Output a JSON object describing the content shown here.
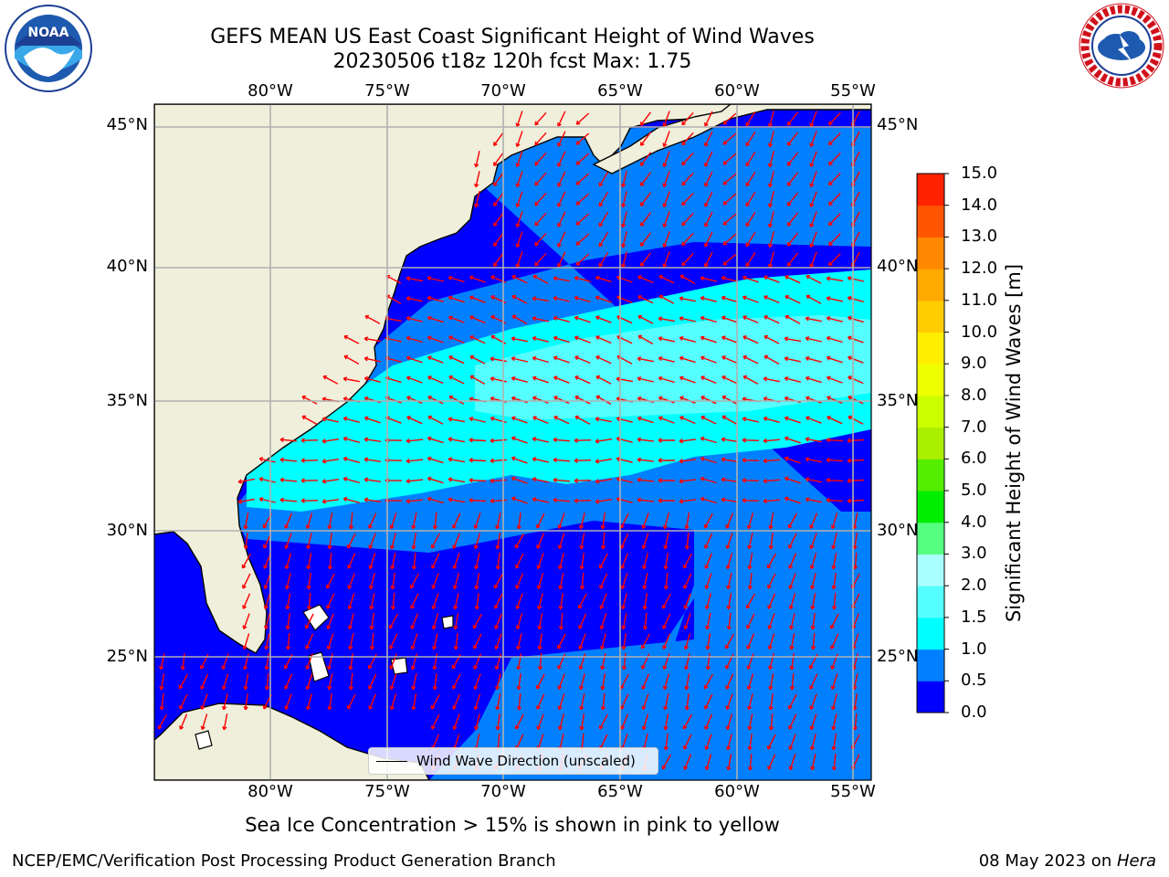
{
  "title": {
    "line1": "GEFS MEAN US East Coast Significant Height of Wind Waves",
    "line2": "20230506 t18z 120h fcst   Max: 1.75"
  },
  "map": {
    "projection": "PlateCarree",
    "lon_range": [
      -85,
      -54
    ],
    "lat_range": [
      20.5,
      46
    ],
    "lon_ticks": [
      "80°W",
      "75°W",
      "70°W",
      "65°W",
      "60°W",
      "55°W"
    ],
    "lat_ticks": [
      "45°N",
      "40°N",
      "35°N",
      "30°N",
      "25°N"
    ],
    "land_color": "#efefdc",
    "grid_color": "#b0b0b0",
    "arrow_color": "#ff0000"
  },
  "colorbar": {
    "label": "Significant Height of Wind Waves [m]",
    "ticks": [
      "0.0",
      "0.5",
      "1.0",
      "1.5",
      "2.0",
      "3.0",
      "4.0",
      "5.0",
      "6.0",
      "7.0",
      "8.0",
      "9.0",
      "10.0",
      "11.0",
      "12.0",
      "13.0",
      "14.0",
      "15.0"
    ],
    "colors": [
      "#0000ff",
      "#0080ff",
      "#00ffff",
      "#55ffff",
      "#aaffff",
      "#55ff80",
      "#00ee00",
      "#55ee00",
      "#aaee00",
      "#ccff00",
      "#eeff00",
      "#ffee00",
      "#ffcc00",
      "#ffaa00",
      "#ff8800",
      "#ff5500",
      "#ff2200"
    ]
  },
  "legend": {
    "label": "Wind Wave Direction (unscaled)"
  },
  "caption": "Sea Ice Concentration > 15% is shown in pink to yellow",
  "footer": {
    "left": "NCEP/EMC/Verification Post Processing Product Generation Branch",
    "date": "08 May 2023 on ",
    "machine": "Hera"
  },
  "logos": {
    "left": {
      "name": "noaa-logo",
      "text": "NOAA"
    },
    "right": {
      "name": "nws-logo",
      "text": "NATIONAL WEATHER SERVICE"
    }
  }
}
